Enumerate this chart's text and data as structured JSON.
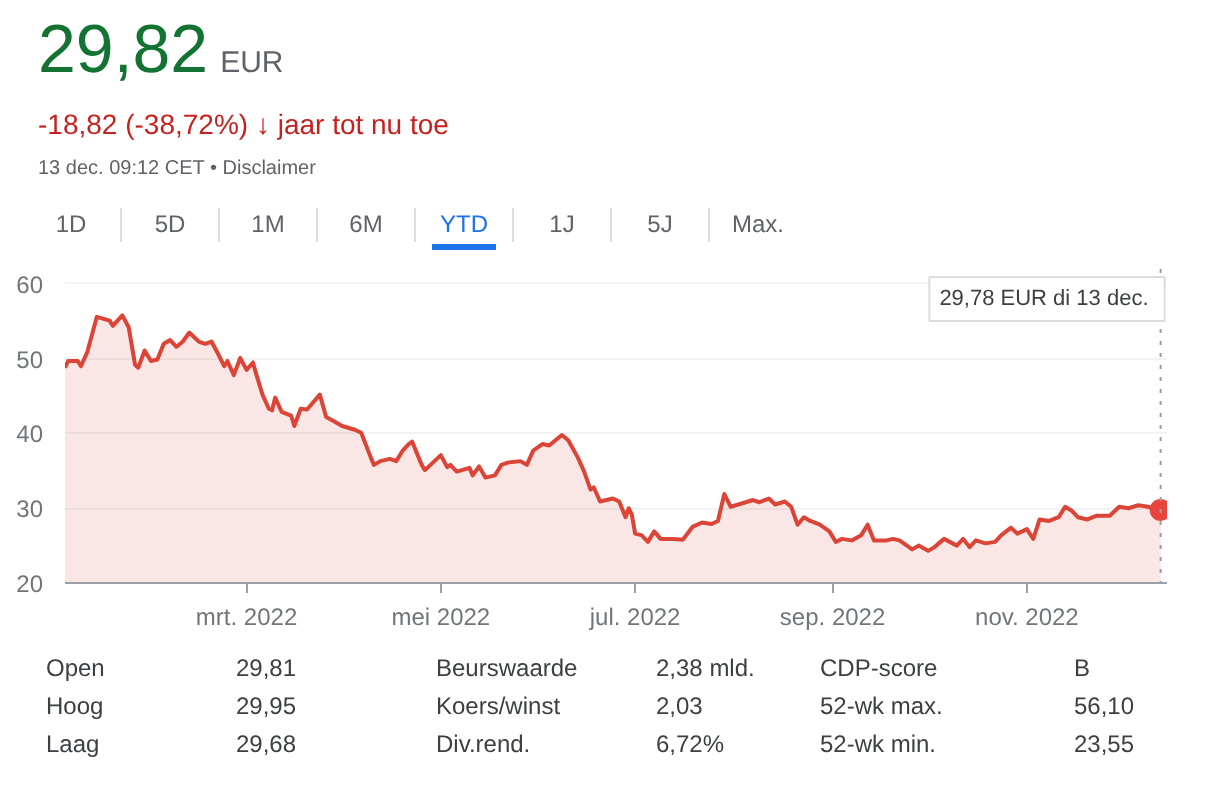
{
  "chart_data": {
    "type": "area",
    "title": "29,82",
    "subtitle": "-18,82 (-38,72%) ↓ jaar tot nu toe",
    "annotations": [
      "EUR",
      "13 dec. 09:12 CET • Disclaimer",
      "1D",
      "5D",
      "1M",
      "6M",
      "YTD",
      "1J",
      "5J",
      "Max.",
      "Open",
      "29,81",
      "Beurswaarde",
      "2,38 mld.",
      "CDP-score",
      "B",
      "Hoog",
      "29,95",
      "Koers/winst",
      "2,03",
      "52-wk max.",
      "56,10",
      "Laag",
      "29,68",
      "Div.rend.",
      "6,72%",
      "52-wk min.",
      "23,55",
      "29,78 EUR  di 13 dec."
    ],
    "x": [
      "2022-01-03",
      "2022-01-04",
      "2022-01-07",
      "2022-01-08",
      "2022-01-10",
      "2022-01-13",
      "2022-01-17",
      "2022-01-18",
      "2022-01-21",
      "2022-01-23",
      "2022-01-25",
      "2022-01-26",
      "2022-01-28",
      "2022-01-30",
      "2022-02-01",
      "2022-02-03",
      "2022-02-05",
      "2022-02-07",
      "2022-02-09",
      "2022-02-11",
      "2022-02-14",
      "2022-02-16",
      "2022-02-18",
      "2022-02-20",
      "2022-02-22",
      "2022-02-23",
      "2022-02-25",
      "2022-02-27",
      "2022-03-01",
      "2022-03-03",
      "2022-03-04",
      "2022-03-06",
      "2022-03-08",
      "2022-03-09",
      "2022-03-10",
      "2022-03-12",
      "2022-03-15",
      "2022-03-16",
      "2022-03-18",
      "2022-03-20",
      "2022-03-24",
      "2022-03-26",
      "2022-03-29",
      "2022-03-31",
      "2022-04-04",
      "2022-04-06",
      "2022-04-09",
      "2022-04-10",
      "2022-04-12",
      "2022-04-15",
      "2022-04-17",
      "2022-04-19",
      "2022-04-21",
      "2022-04-22",
      "2022-04-25",
      "2022-04-26",
      "2022-04-29",
      "2022-05-01",
      "2022-05-03",
      "2022-05-04",
      "2022-05-06",
      "2022-05-10",
      "2022-05-11",
      "2022-05-13",
      "2022-05-15",
      "2022-05-18",
      "2022-05-20",
      "2022-05-22",
      "2022-05-26",
      "2022-05-28",
      "2022-05-30",
      "2022-06-02",
      "2022-06-04",
      "2022-06-08",
      "2022-06-10",
      "2022-06-13",
      "2022-06-15",
      "2022-06-17",
      "2022-06-18",
      "2022-06-20",
      "2022-06-24",
      "2022-06-26",
      "2022-06-28",
      "2022-06-29",
      "2022-06-30",
      "2022-07-01",
      "2022-07-03",
      "2022-07-05",
      "2022-07-07",
      "2022-07-09",
      "2022-07-13",
      "2022-07-16",
      "2022-07-19",
      "2022-07-22",
      "2022-07-25",
      "2022-07-27",
      "2022-07-29",
      "2022-07-31",
      "2022-08-04",
      "2022-08-07",
      "2022-08-09",
      "2022-08-12",
      "2022-08-14",
      "2022-08-17",
      "2022-08-19",
      "2022-08-21",
      "2022-08-23",
      "2022-08-25",
      "2022-08-28",
      "2022-08-31",
      "2022-09-02",
      "2022-09-04",
      "2022-09-07",
      "2022-09-10",
      "2022-09-12",
      "2022-09-14",
      "2022-09-18",
      "2022-09-20",
      "2022-09-22",
      "2022-09-26",
      "2022-09-28",
      "2022-10-01",
      "2022-10-03",
      "2022-10-06",
      "2022-10-10",
      "2022-10-12",
      "2022-10-14",
      "2022-10-16",
      "2022-10-19",
      "2022-10-22",
      "2022-10-24",
      "2022-10-27",
      "2022-10-29",
      "2022-11-01",
      "2022-11-03",
      "2022-11-05",
      "2022-11-08",
      "2022-11-11",
      "2022-11-13",
      "2022-11-15",
      "2022-11-17",
      "2022-11-20",
      "2022-11-23",
      "2022-11-27",
      "2022-11-30",
      "2022-12-03",
      "2022-12-06",
      "2022-12-09",
      "2022-12-13"
    ],
    "series": [
      {
        "color": "#db4437",
        "values": [
          48.8,
          49.7,
          49.7,
          49.0,
          50.9,
          55.6,
          55.1,
          54.4,
          55.8,
          54.2,
          49.2,
          48.8,
          51.1,
          49.7,
          49.9,
          52.0,
          52.5,
          51.6,
          52.3,
          53.5,
          52.3,
          52.0,
          52.3,
          50.7,
          49.0,
          49.7,
          47.8,
          50.1,
          48.5,
          49.5,
          48.0,
          45.2,
          43.3,
          43.1,
          44.8,
          42.9,
          42.4,
          41.0,
          43.3,
          43.2,
          45.2,
          42.2,
          41.5,
          41.0,
          40.5,
          40.1,
          36.8,
          35.8,
          36.3,
          36.6,
          36.3,
          37.7,
          38.6,
          38.9,
          35.8,
          35.1,
          36.3,
          37.1,
          35.5,
          35.8,
          34.9,
          35.4,
          34.4,
          35.6,
          34.1,
          34.4,
          35.8,
          36.1,
          36.3,
          35.8,
          37.7,
          38.6,
          38.4,
          39.8,
          39.1,
          36.8,
          34.9,
          32.5,
          32.8,
          30.9,
          31.3,
          30.9,
          28.8,
          30.0,
          29.1,
          26.6,
          26.4,
          25.5,
          26.9,
          25.9,
          25.9,
          25.8,
          27.5,
          28.1,
          27.9,
          28.3,
          31.9,
          30.2,
          30.7,
          31.1,
          30.8,
          31.3,
          30.5,
          30.9,
          30.2,
          27.8,
          28.8,
          28.3,
          27.8,
          26.9,
          25.5,
          25.9,
          25.7,
          26.4,
          27.8,
          25.7,
          25.7,
          25.9,
          25.7,
          24.5,
          25.0,
          24.3,
          24.8,
          25.9,
          25.0,
          25.9,
          24.8,
          25.7,
          25.3,
          25.5,
          26.4,
          27.4,
          26.6,
          27.2,
          25.9,
          28.5,
          28.3,
          28.8,
          30.2,
          29.7,
          28.8,
          28.5,
          29.0,
          29.0,
          30.2,
          30.0,
          30.4,
          30.2,
          29.78
        ]
      },
      {
        "type": "scatter",
        "color": "#e8453c",
        "marker": "circle",
        "x": [
          "2022-12-13"
        ],
        "values": [
          29.78
        ]
      }
    ],
    "xlim": [
      "2022-01-03",
      "2022-12-15"
    ],
    "xticks": [
      {
        "value": "2022-03-01",
        "label": "mrt. 2022"
      },
      {
        "value": "2022-05-01",
        "label": "mei 2022"
      },
      {
        "value": "2022-07-01",
        "label": "jul. 2022"
      },
      {
        "value": "2022-09-01",
        "label": "sep. 2022"
      },
      {
        "value": "2022-11-01",
        "label": "nov. 2022"
      }
    ],
    "ylim": [
      20,
      62
    ],
    "yticks": [
      20,
      30,
      40,
      50,
      60
    ],
    "grid": "y",
    "ref_lines": [
      {
        "axis": "x",
        "value": "2022-12-13",
        "label": null,
        "color": "#9e9e9e",
        "line_style": "dotted"
      }
    ]
  }
}
